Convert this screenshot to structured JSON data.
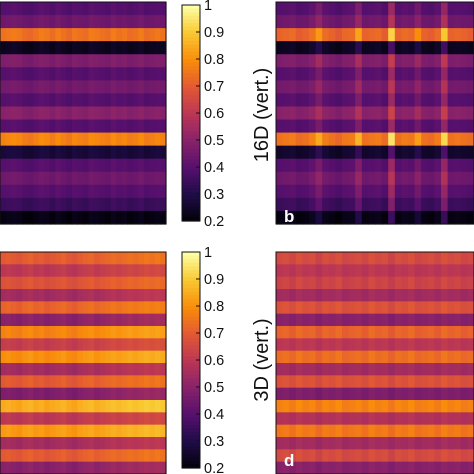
{
  "chart_data": [
    {
      "type": "heatmap",
      "panel": "a",
      "panel_letter": "",
      "colormap": "inferno",
      "row_values": [
        0.4,
        0.45,
        0.75,
        0.24,
        0.48,
        0.4,
        0.46,
        0.4,
        0.5,
        0.4,
        0.78,
        0.28,
        0.4,
        0.45,
        0.4,
        0.35,
        0.22
      ],
      "column_variation": [
        0.0,
        0.01,
        0.02,
        0.01,
        -0.01,
        -0.02,
        0.0,
        0.02,
        0.01,
        -0.01,
        0.02,
        0.0,
        -0.02,
        0.01,
        0.0,
        -0.01,
        0.02,
        0.01,
        0.0,
        -0.01,
        0.02,
        0.0,
        0.01,
        -0.01,
        0.0,
        0.02,
        -0.01,
        0.0,
        0.01,
        0.0
      ]
    },
    {
      "type": "heatmap",
      "panel": "b",
      "panel_letter": "b",
      "colormap": "inferno",
      "row_values": [
        0.4,
        0.45,
        0.72,
        0.24,
        0.48,
        0.4,
        0.46,
        0.4,
        0.5,
        0.4,
        0.75,
        0.26,
        0.4,
        0.45,
        0.4,
        0.35,
        0.22
      ],
      "column_variation": [
        0.0,
        0.01,
        0.02,
        -0.01,
        0.0,
        0.03,
        0.1,
        0.02,
        0.0,
        -0.02,
        0.01,
        0.02,
        0.12,
        0.0,
        0.01,
        0.02,
        -0.01,
        0.2,
        0.0,
        0.02,
        0.01,
        0.08,
        0.0,
        -0.01,
        0.02,
        0.18,
        0.0,
        0.01,
        0.0,
        -0.01
      ]
    },
    {
      "type": "heatmap",
      "panel": "c",
      "panel_letter": "",
      "colormap": "inferno",
      "row_values": [
        0.7,
        0.6,
        0.68,
        0.55,
        0.72,
        0.5,
        0.78,
        0.62,
        0.8,
        0.55,
        0.7,
        0.48,
        0.85,
        0.6,
        0.82,
        0.55,
        0.7,
        0.5
      ],
      "column_variation": [
        0.0,
        0.01,
        0.0,
        -0.01,
        0.01,
        0.02,
        0.0,
        0.01,
        -0.01,
        0.0,
        0.01,
        0.02,
        0.0,
        -0.01,
        0.01,
        0.02,
        0.03,
        0.01,
        0.02,
        0.03,
        0.04,
        0.03,
        0.04,
        0.05,
        0.04,
        0.05,
        0.06,
        0.05,
        0.06,
        0.05
      ]
    },
    {
      "type": "heatmap",
      "panel": "d",
      "panel_letter": "d",
      "colormap": "inferno",
      "row_values": [
        0.66,
        0.6,
        0.64,
        0.55,
        0.68,
        0.5,
        0.72,
        0.6,
        0.74,
        0.55,
        0.68,
        0.48,
        0.78,
        0.58,
        0.76,
        0.55,
        0.66,
        0.5
      ],
      "column_variation": [
        0.0,
        0.01,
        -0.01,
        0.02,
        0.0,
        0.01,
        -0.02,
        0.01,
        0.0,
        0.02,
        -0.01,
        0.0,
        0.01,
        -0.01,
        0.02,
        0.0,
        0.01,
        -0.02,
        0.01,
        0.0,
        0.02,
        -0.01,
        0.0,
        0.01,
        -0.01,
        0.02,
        0.0,
        0.01,
        -0.01,
        0.0
      ]
    }
  ],
  "colorbars": [
    {
      "label": "16D (vert.)",
      "ticks": [
        "1",
        "0.9",
        "0.8",
        "0.7",
        "0.6",
        "0.5",
        "0.4",
        "0.3",
        "0.2"
      ],
      "range": [
        0.2,
        1.0
      ]
    },
    {
      "label": "3D (vert.)",
      "ticks": [
        "1",
        "0.9",
        "0.8",
        "0.7",
        "0.6",
        "0.5",
        "0.4",
        "0.3",
        "0.2"
      ],
      "range": [
        0.2,
        1.0
      ]
    }
  ],
  "colors": {
    "background": "#ffffff",
    "frame": "#111111",
    "panel_letter": "#ffffff"
  }
}
